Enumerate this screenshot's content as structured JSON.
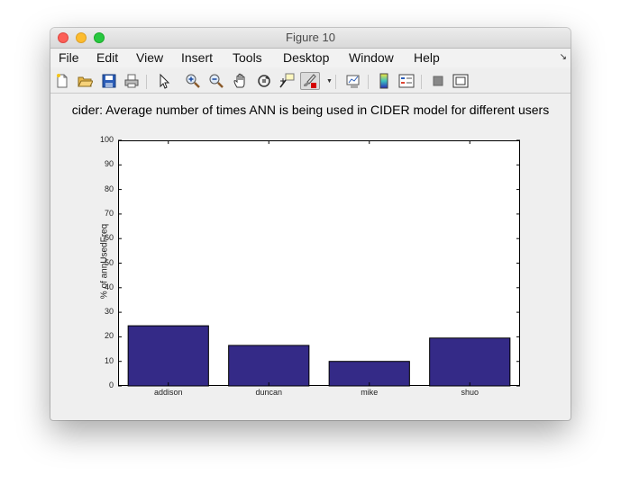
{
  "window": {
    "title": "Figure 10"
  },
  "menu": [
    "File",
    "Edit",
    "View",
    "Insert",
    "Tools",
    "Desktop",
    "Window",
    "Help"
  ],
  "toolbar": {
    "icons": [
      "new-figure-icon",
      "open-file-icon",
      "save-icon",
      "print-icon",
      "pointer-icon",
      "zoom-in-icon",
      "zoom-out-icon",
      "pan-hand-icon",
      "rotate-3d-icon",
      "data-cursor-icon",
      "brush-icon",
      "brush-dropdown-icon",
      "link-plot-icon",
      "colorbar-icon",
      "legend-icon",
      "hide-plot-tools-icon",
      "show-plot-tools-icon"
    ]
  },
  "colors": {
    "bar_fill": "#342a87",
    "axes_background": "#ffffff",
    "figure_background": "#efefef"
  },
  "chart_data": {
    "type": "bar",
    "title": "cider: Average number of times ANN is being used in CIDER model for different users",
    "xlabel": "",
    "ylabel": "% of annUsedFreq",
    "categories": [
      "addison",
      "duncan",
      "mike",
      "shuo"
    ],
    "values": [
      24.5,
      16.5,
      10,
      19.5
    ],
    "ylim": [
      0,
      100
    ],
    "yticks": [
      0,
      10,
      20,
      30,
      40,
      50,
      60,
      70,
      80,
      90,
      100
    ],
    "grid": false,
    "legend": "none"
  }
}
